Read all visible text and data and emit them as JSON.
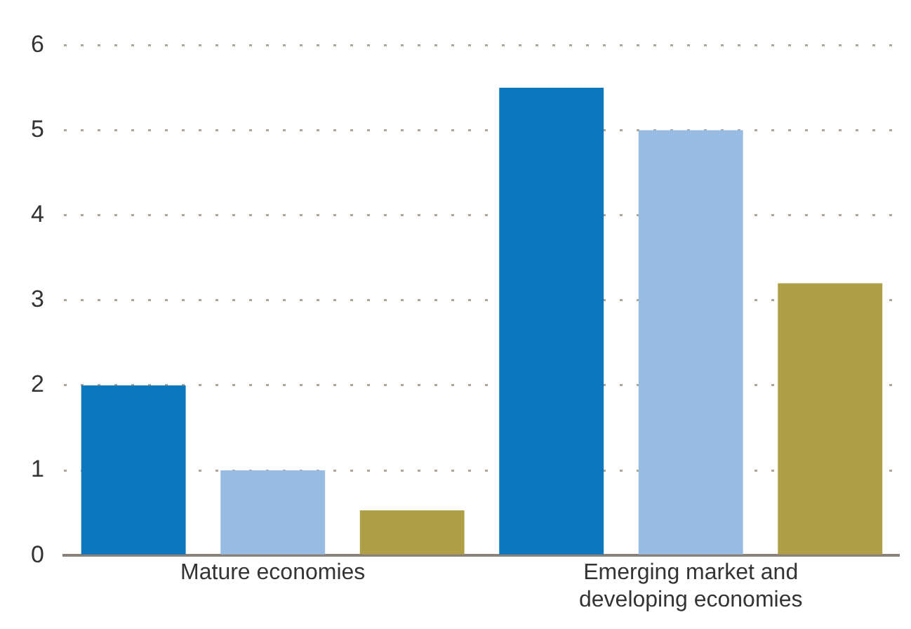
{
  "chart_data": {
    "type": "bar",
    "categories": [
      "Mature economies",
      "Emerging market and developing economies"
    ],
    "series": [
      {
        "color": "#0a77bf",
        "values": [
          2,
          5.5
        ]
      },
      {
        "color": "#97bbe2",
        "values": [
          1,
          5
        ]
      },
      {
        "color": "#ae9f47",
        "values": [
          0.53,
          3.2
        ]
      }
    ],
    "ylim": [
      0,
      6
    ],
    "yticks": [
      0,
      1,
      2,
      3,
      4,
      5,
      6
    ],
    "grid": "y",
    "legend": false
  }
}
